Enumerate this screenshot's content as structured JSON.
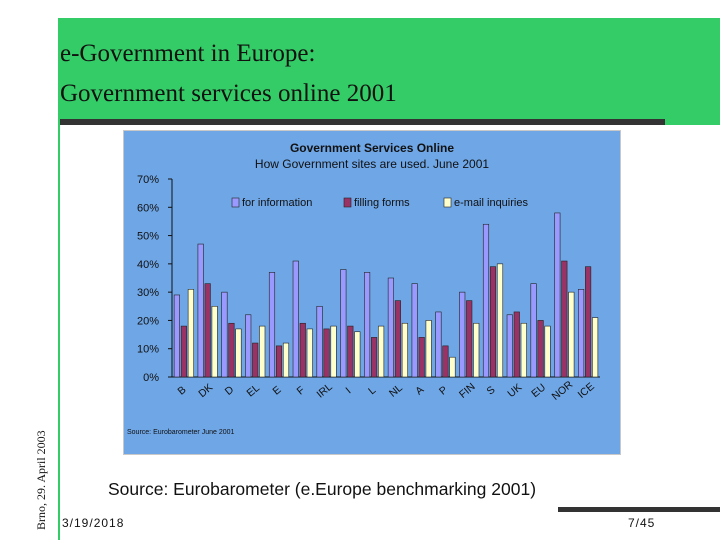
{
  "slide": {
    "title_line1": "e-Government in Europe:",
    "title_line2": "Government services online 2001",
    "side_text": "Brno, 29. April 2003",
    "source": "Source: Eurobarometer (e.Europe benchmarking 2001)",
    "date": "3/19/2018",
    "page": "7/45"
  },
  "colors": {
    "background": "#33cc66",
    "plot_area": "#6fa6e6",
    "for_information": "#9999ff",
    "filling_forms": "#993366",
    "email_inquiries": "#ffffcc"
  },
  "chart_data": {
    "type": "bar",
    "title": "Government Services Online",
    "subtitle": "How Government sites are used. June 2001",
    "source_note": "Source: Eurobarometer June 2001",
    "ylim": [
      0,
      70
    ],
    "yticks": [
      "0%",
      "10%",
      "20%",
      "30%",
      "40%",
      "50%",
      "60%",
      "70%"
    ],
    "grid": false,
    "legend": "top",
    "categories": [
      "B",
      "DK",
      "D",
      "EL",
      "E",
      "F",
      "IRL",
      "I",
      "L",
      "NL",
      "A",
      "P",
      "FIN",
      "S",
      "UK",
      "EU",
      "NOR",
      "ICE"
    ],
    "series": [
      {
        "name": "for information",
        "values": [
          29,
          47,
          30,
          22,
          37,
          41,
          25,
          38,
          37,
          35,
          33,
          23,
          30,
          54,
          22,
          33,
          58,
          31
        ]
      },
      {
        "name": "filling forms",
        "values": [
          18,
          33,
          19,
          12,
          11,
          19,
          17,
          18,
          14,
          27,
          14,
          11,
          27,
          39,
          23,
          20,
          41,
          39
        ]
      },
      {
        "name": "e-mail inquiries",
        "values": [
          31,
          25,
          17,
          18,
          12,
          17,
          18,
          16,
          18,
          19,
          20,
          7,
          19,
          40,
          19,
          18,
          30,
          21
        ]
      }
    ]
  }
}
